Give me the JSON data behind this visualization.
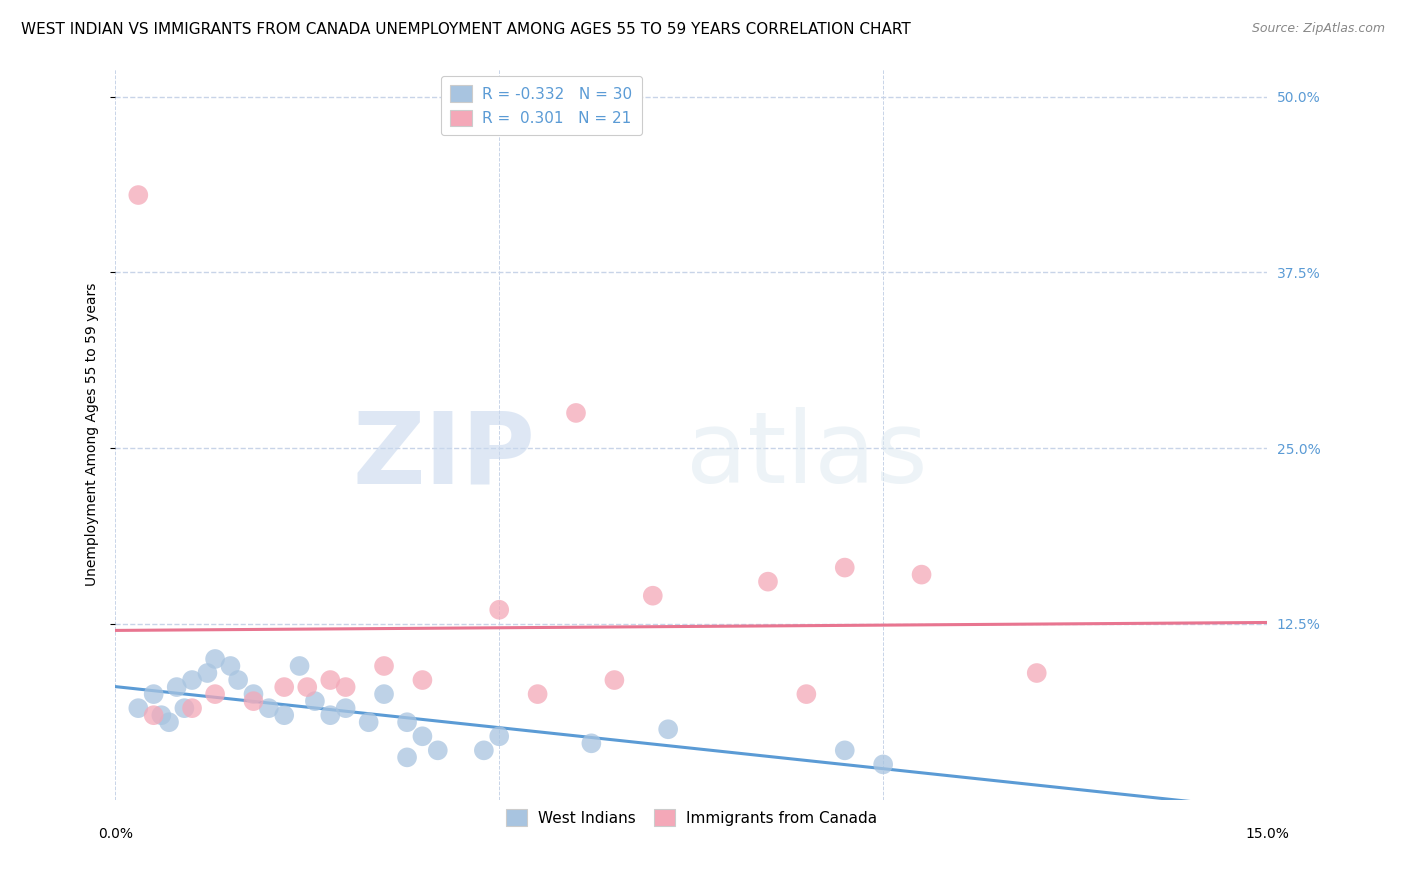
{
  "title": "WEST INDIAN VS IMMIGRANTS FROM CANADA UNEMPLOYMENT AMONG AGES 55 TO 59 YEARS CORRELATION CHART",
  "source": "Source: ZipAtlas.com",
  "ylabel": "Unemployment Among Ages 55 to 59 years",
  "xlim": [
    0.0,
    0.15
  ],
  "ylim": [
    0.0,
    0.52
  ],
  "legend_entries": [
    {
      "label": "R = -0.332   N = 30",
      "color": "#a8c4e0"
    },
    {
      "label": "R =  0.301   N = 21",
      "color": "#f4a8b8"
    }
  ],
  "legend_label_bottom": [
    "West Indians",
    "Immigrants from Canada"
  ],
  "west_indians_x": [
    0.003,
    0.005,
    0.006,
    0.007,
    0.008,
    0.009,
    0.01,
    0.012,
    0.013,
    0.015,
    0.016,
    0.018,
    0.02,
    0.022,
    0.024,
    0.026,
    0.028,
    0.03,
    0.033,
    0.035,
    0.038,
    0.038,
    0.04,
    0.042,
    0.048,
    0.05,
    0.062,
    0.072,
    0.095,
    0.1
  ],
  "west_indians_y": [
    0.065,
    0.075,
    0.06,
    0.055,
    0.08,
    0.065,
    0.085,
    0.09,
    0.1,
    0.095,
    0.085,
    0.075,
    0.065,
    0.06,
    0.095,
    0.07,
    0.06,
    0.065,
    0.055,
    0.075,
    0.055,
    0.03,
    0.045,
    0.035,
    0.035,
    0.045,
    0.04,
    0.05,
    0.035,
    0.025
  ],
  "canada_x": [
    0.003,
    0.005,
    0.01,
    0.013,
    0.018,
    0.022,
    0.025,
    0.028,
    0.03,
    0.035,
    0.04,
    0.05,
    0.055,
    0.06,
    0.065,
    0.07,
    0.085,
    0.09,
    0.095,
    0.105,
    0.12
  ],
  "canada_y": [
    0.43,
    0.06,
    0.065,
    0.075,
    0.07,
    0.08,
    0.08,
    0.085,
    0.08,
    0.095,
    0.085,
    0.135,
    0.075,
    0.275,
    0.085,
    0.145,
    0.155,
    0.075,
    0.165,
    0.16,
    0.09
  ],
  "wi_line_color": "#5b9bd5",
  "canada_line_color": "#e87590",
  "wi_dot_color": "#a8c4e0",
  "canada_dot_color": "#f4a8b8",
  "watermark_zip": "ZIP",
  "watermark_atlas": "atlas",
  "background_color": "#ffffff",
  "grid_color": "#c8d4e8",
  "title_fontsize": 11,
  "source_fontsize": 9,
  "axis_label_fontsize": 10,
  "tick_fontsize": 10,
  "right_tick_color": "#5b9bd5"
}
